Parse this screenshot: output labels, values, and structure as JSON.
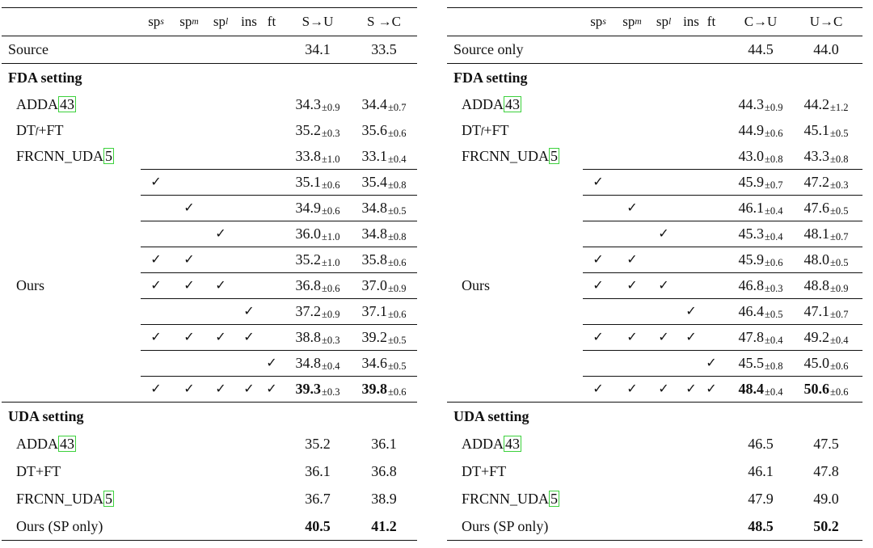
{
  "left": {
    "headers": {
      "sps": "sp",
      "sps_sub": "s",
      "spm": "sp",
      "spm_sub": "m",
      "spl": "sp",
      "spl_sub": "l",
      "ins": "ins",
      "ft": "ft",
      "col1": "S→U",
      "col2": "S →C"
    },
    "source_label": "Source",
    "source_values": [
      "34.1",
      "33.5"
    ],
    "fda_title": "FDA setting",
    "fda_baselines": [
      {
        "name": "ADDA ",
        "cite": "43",
        "v1": "34.3",
        "pm1": "±0.9",
        "v2": "34.4",
        "pm2": "±0.7"
      },
      {
        "name": "DT",
        "sub": "f",
        "name2": "+FT",
        "v1": "35.2",
        "pm1": "±0.3",
        "v2": "35.6",
        "pm2": "±0.6"
      },
      {
        "name": "FRCNN_UDA ",
        "cite": "5",
        "v1": "33.8",
        "pm1": "±1.0",
        "v2": "33.1",
        "pm2": "±0.4"
      }
    ],
    "ours_label": "Ours",
    "ablation": [
      {
        "checks": [
          "✓",
          "",
          "",
          "",
          ""
        ],
        "v1": "35.1",
        "pm1": "±0.6",
        "v2": "35.4",
        "pm2": "±0.8"
      },
      {
        "checks": [
          "",
          "✓",
          "",
          "",
          ""
        ],
        "v1": "34.9",
        "pm1": "±0.6",
        "v2": "34.8",
        "pm2": "±0.5"
      },
      {
        "checks": [
          "",
          "",
          "✓",
          "",
          ""
        ],
        "v1": "36.0",
        "pm1": "±1.0",
        "v2": "34.8",
        "pm2": "±0.8"
      },
      {
        "checks": [
          "✓",
          "✓",
          "",
          "",
          ""
        ],
        "v1": "35.2",
        "pm1": "±1.0",
        "v2": "35.8",
        "pm2": "±0.6"
      },
      {
        "checks": [
          "✓",
          "✓",
          "✓",
          "",
          ""
        ],
        "v1": "36.8",
        "pm1": "±0.6",
        "v2": "37.0",
        "pm2": "±0.9"
      },
      {
        "checks": [
          "",
          "",
          "",
          "✓",
          ""
        ],
        "v1": "37.2",
        "pm1": "±0.9",
        "v2": "37.1",
        "pm2": "±0.6"
      },
      {
        "checks": [
          "✓",
          "✓",
          "✓",
          "✓",
          ""
        ],
        "v1": "38.8",
        "pm1": "±0.3",
        "v2": "39.2",
        "pm2": "±0.5"
      },
      {
        "checks": [
          "",
          "",
          "",
          "",
          "✓"
        ],
        "v1": "34.8",
        "pm1": "±0.4",
        "v2": "34.6",
        "pm2": "±0.5"
      },
      {
        "checks": [
          "✓",
          "✓",
          "✓",
          "✓",
          "✓"
        ],
        "v1": "39.3",
        "pm1": "±0.3",
        "v2": "39.8",
        "pm2": "±0.6",
        "bold": true
      }
    ],
    "uda_title": "UDA setting",
    "uda_rows": [
      {
        "name": "ADDA ",
        "cite": "43",
        "v1": "35.2",
        "v2": "36.1"
      },
      {
        "name": "DT+FT",
        "v1": "36.1",
        "v2": "36.8"
      },
      {
        "name": "FRCNN_UDA ",
        "cite": "5",
        "v1": "36.7",
        "v2": "38.9"
      },
      {
        "name": "Ours (SP only)",
        "v1": "40.5",
        "v2": "41.2",
        "bold": true
      }
    ]
  },
  "right": {
    "headers": {
      "sps": "sp",
      "sps_sub": "s",
      "spm": "sp",
      "spm_sub": "m",
      "spl": "sp",
      "spl_sub": "l",
      "ins": "ins",
      "ft": "ft",
      "col1": "C→U",
      "col2": "U→C"
    },
    "source_label": "Source only",
    "source_values": [
      "44.5",
      "44.0"
    ],
    "fda_title": "FDA setting",
    "fda_baselines": [
      {
        "name": "ADDA ",
        "cite": "43",
        "v1": "44.3",
        "pm1": "±0.9",
        "v2": "44.2",
        "pm2": "±1.2"
      },
      {
        "name": "DT",
        "sub": "f",
        "name2": "+FT",
        "v1": "44.9",
        "pm1": "±0.6",
        "v2": "45.1",
        "pm2": "±0.5"
      },
      {
        "name": "FRCNN_UDA ",
        "cite": "5",
        "v1": "43.0",
        "pm1": "±0.8",
        "v2": "43.3",
        "pm2": "±0.8"
      }
    ],
    "ours_label": "Ours",
    "ablation": [
      {
        "checks": [
          "✓",
          "",
          "",
          "",
          ""
        ],
        "v1": "45.9",
        "pm1": "±0.7",
        "v2": "47.2",
        "pm2": "±0.3"
      },
      {
        "checks": [
          "",
          "✓",
          "",
          "",
          ""
        ],
        "v1": "46.1",
        "pm1": "±0.4",
        "v2": "47.6",
        "pm2": "±0.5"
      },
      {
        "checks": [
          "",
          "",
          "✓",
          "",
          ""
        ],
        "v1": "45.3",
        "pm1": "±0.4",
        "v2": "48.1",
        "pm2": "±0.7"
      },
      {
        "checks": [
          "✓",
          "✓",
          "",
          "",
          ""
        ],
        "v1": "45.9",
        "pm1": "±0.6",
        "v2": "48.0",
        "pm2": "±0.5"
      },
      {
        "checks": [
          "✓",
          "✓",
          "✓",
          "",
          ""
        ],
        "v1": "46.8",
        "pm1": "±0.3",
        "v2": "48.8",
        "pm2": "±0.9"
      },
      {
        "checks": [
          "",
          "",
          "",
          "✓",
          ""
        ],
        "v1": "46.4",
        "pm1": "±0.5",
        "v2": "47.1",
        "pm2": "±0.7"
      },
      {
        "checks": [
          "✓",
          "✓",
          "✓",
          "✓",
          ""
        ],
        "v1": "47.8",
        "pm1": "±0.4",
        "v2": "49.2",
        "pm2": "±0.4"
      },
      {
        "checks": [
          "",
          "",
          "",
          "",
          "✓"
        ],
        "v1": "45.5",
        "pm1": "±0.8",
        "v2": "45.0",
        "pm2": "±0.6"
      },
      {
        "checks": [
          "✓",
          "✓",
          "✓",
          "✓",
          "✓"
        ],
        "v1": "48.4",
        "pm1": "±0.4",
        "v2": "50.6",
        "pm2": "±0.6",
        "bold": true
      }
    ],
    "uda_title": "UDA setting",
    "uda_rows": [
      {
        "name": "ADDA ",
        "cite": "43",
        "v1": "46.5",
        "v2": "47.5"
      },
      {
        "name": "DT+FT",
        "v1": "46.1",
        "v2": "47.8"
      },
      {
        "name": "FRCNN_UDA",
        "cite": "5",
        "v1": "47.9",
        "v2": "49.0"
      },
      {
        "name": "Ours (SP only)",
        "v1": "48.5",
        "v2": "50.2",
        "bold": true
      }
    ]
  }
}
